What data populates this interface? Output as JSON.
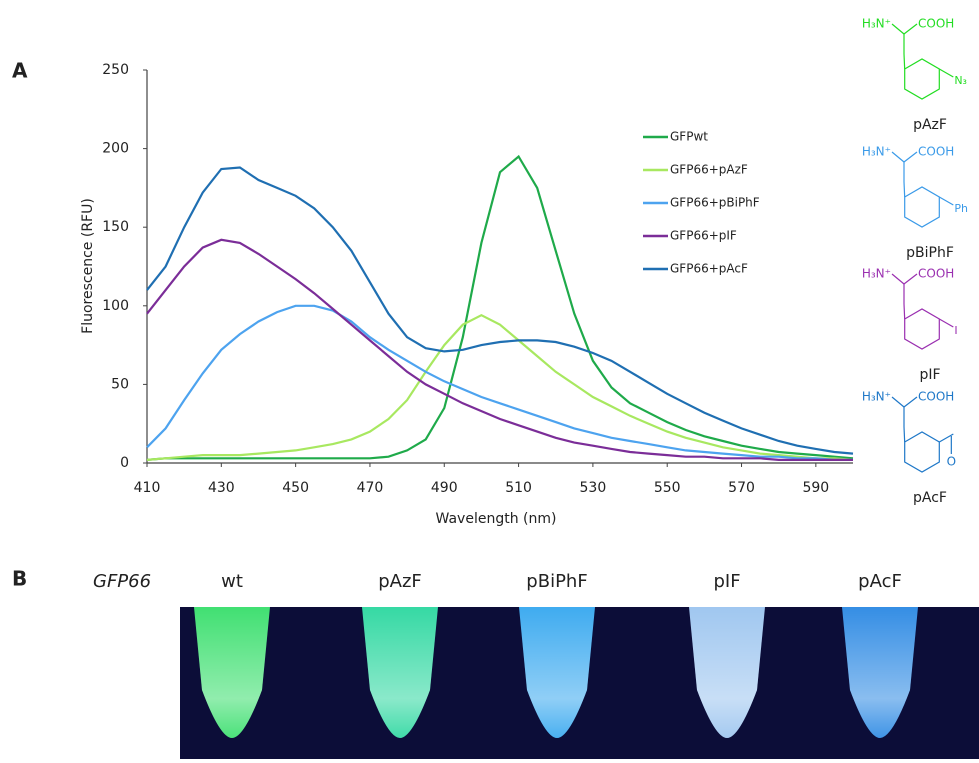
{
  "figure": {
    "panel_a_label": "A",
    "panel_b_label": "B"
  },
  "chart_data": {
    "type": "line",
    "x_label": "Wavelength (nm)",
    "y_label": "Fluorescence (RFU)",
    "x": [
      410,
      415,
      420,
      425,
      430,
      435,
      440,
      445,
      450,
      455,
      460,
      465,
      470,
      475,
      480,
      485,
      490,
      495,
      500,
      505,
      510,
      515,
      520,
      525,
      530,
      535,
      540,
      545,
      550,
      555,
      560,
      565,
      570,
      575,
      580,
      585,
      590,
      595,
      600
    ],
    "xlim": [
      410,
      600
    ],
    "xticks": [
      410,
      430,
      450,
      470,
      490,
      510,
      530,
      550,
      570,
      590
    ],
    "ylim": [
      0,
      250
    ],
    "yticks": [
      0,
      50,
      100,
      150,
      200,
      250
    ],
    "legend": "right",
    "series": [
      {
        "name": "GFPwt",
        "color": "#1faa4a",
        "values": [
          2,
          3,
          3,
          3,
          3,
          3,
          3,
          3,
          3,
          3,
          3,
          3,
          3,
          4,
          8,
          15,
          35,
          80,
          140,
          185,
          195,
          175,
          135,
          95,
          65,
          48,
          38,
          32,
          26,
          21,
          17,
          14,
          11,
          9,
          7,
          6,
          5,
          4,
          3
        ]
      },
      {
        "name": "GFP66+pAzF",
        "color": "#a8e860",
        "values": [
          2,
          3,
          4,
          5,
          5,
          5,
          6,
          7,
          8,
          10,
          12,
          15,
          20,
          28,
          40,
          58,
          75,
          88,
          94,
          88,
          78,
          68,
          58,
          50,
          42,
          36,
          30,
          25,
          20,
          16,
          13,
          10,
          8,
          6,
          5,
          4,
          3,
          3,
          2
        ]
      },
      {
        "name": "GFP66+pBiPhF",
        "color": "#4da3ef",
        "values": [
          10,
          22,
          40,
          57,
          72,
          82,
          90,
          96,
          100,
          100,
          97,
          90,
          80,
          72,
          65,
          58,
          52,
          47,
          42,
          38,
          34,
          30,
          26,
          22,
          19,
          16,
          14,
          12,
          10,
          8,
          7,
          6,
          5,
          4,
          4,
          3,
          3,
          2,
          2
        ]
      },
      {
        "name": "GFP66+pIF",
        "color": "#7b2d98",
        "values": [
          95,
          110,
          125,
          137,
          142,
          140,
          133,
          125,
          117,
          108,
          98,
          88,
          78,
          68,
          58,
          50,
          44,
          38,
          33,
          28,
          24,
          20,
          16,
          13,
          11,
          9,
          7,
          6,
          5,
          4,
          4,
          3,
          3,
          3,
          2,
          2,
          2,
          2,
          2
        ]
      },
      {
        "name": "GFP66+pAcF",
        "color": "#1f6fb2",
        "values": [
          110,
          125,
          150,
          172,
          187,
          188,
          180,
          175,
          170,
          162,
          150,
          135,
          115,
          95,
          80,
          73,
          71,
          72,
          75,
          77,
          78,
          78,
          77,
          74,
          70,
          65,
          58,
          51,
          44,
          38,
          32,
          27,
          22,
          18,
          14,
          11,
          9,
          7,
          6
        ]
      }
    ]
  },
  "structures": [
    {
      "name": "pAzF",
      "color": "#22dd22",
      "amine": "H₃N⁺",
      "acid": "COOH",
      "substituent": "N₃"
    },
    {
      "name": "pBiPhF",
      "color": "#3a9ae8",
      "amine": "H₃N⁺",
      "acid": "COOH",
      "substituent": "Ph"
    },
    {
      "name": "pIF",
      "color": "#9a2fb0",
      "amine": "H₃N⁺",
      "acid": "COOH",
      "substituent": "I"
    },
    {
      "name": "pAcF",
      "color": "#1f78c8",
      "amine": "H₃N⁺",
      "acid": "COOH",
      "substituent": "O"
    }
  ],
  "photo": {
    "row_label": "GFP66",
    "samples": [
      {
        "label": "wt",
        "color": "#3cf070"
      },
      {
        "label": "pAzF",
        "color": "#2fe8a8"
      },
      {
        "label": "pBiPhF",
        "color": "#3ab4ff"
      },
      {
        "label": "pIF",
        "color": "#a8d4ff"
      },
      {
        "label": "pAcF",
        "color": "#2e92f2"
      }
    ]
  }
}
